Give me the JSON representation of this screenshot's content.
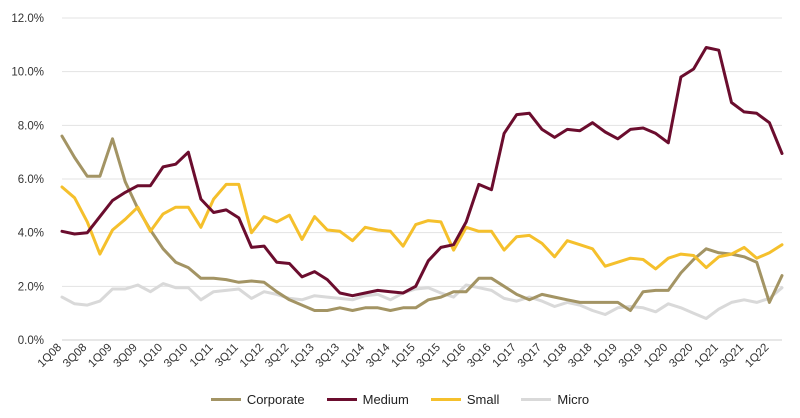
{
  "chart_data": {
    "type": "line",
    "x": [
      "1Q08",
      "2Q08",
      "3Q08",
      "4Q08",
      "1Q09",
      "2Q09",
      "3Q09",
      "4Q09",
      "1Q10",
      "2Q10",
      "3Q10",
      "4Q10",
      "1Q11",
      "2Q11",
      "3Q11",
      "4Q11",
      "1Q12",
      "2Q12",
      "3Q12",
      "4Q12",
      "1Q13",
      "2Q13",
      "3Q13",
      "4Q13",
      "1Q14",
      "2Q14",
      "3Q14",
      "4Q14",
      "1Q15",
      "2Q15",
      "3Q15",
      "4Q15",
      "1Q16",
      "2Q16",
      "3Q16",
      "4Q16",
      "1Q17",
      "2Q17",
      "3Q17",
      "4Q17",
      "1Q18",
      "2Q18",
      "3Q18",
      "4Q18",
      "1Q19",
      "2Q19",
      "3Q19",
      "4Q19",
      "1Q20",
      "2Q20",
      "3Q20",
      "4Q20",
      "1Q21",
      "2Q21",
      "3Q21",
      "4Q21",
      "1Q22",
      "2Q22"
    ],
    "x_tick_labels": [
      "1Q08",
      "3Q08",
      "1Q09",
      "3Q09",
      "1Q10",
      "3Q10",
      "1Q11",
      "3Q11",
      "1Q12",
      "3Q12",
      "1Q13",
      "3Q13",
      "1Q14",
      "3Q14",
      "1Q15",
      "3Q15",
      "1Q16",
      "3Q16",
      "1Q17",
      "3Q17",
      "1Q18",
      "3Q18",
      "1Q19",
      "3Q19",
      "1Q20",
      "3Q20",
      "1Q21",
      "3Q21",
      "1Q22"
    ],
    "y_tick_labels": [
      "0.0%",
      "2.0%",
      "4.0%",
      "6.0%",
      "8.0%",
      "10.0%",
      "12.0%"
    ],
    "ylim": [
      0,
      12
    ],
    "grid": true,
    "legend_position": "bottom",
    "series": [
      {
        "name": "Corporate",
        "color": "#a39464",
        "values": [
          7.6,
          6.8,
          6.1,
          6.1,
          7.5,
          5.9,
          4.9,
          4.1,
          3.4,
          2.9,
          2.7,
          2.3,
          2.3,
          2.25,
          2.15,
          2.2,
          2.15,
          1.8,
          1.5,
          1.3,
          1.1,
          1.1,
          1.2,
          1.1,
          1.2,
          1.2,
          1.1,
          1.2,
          1.2,
          1.5,
          1.6,
          1.8,
          1.8,
          2.3,
          2.3,
          2.0,
          1.7,
          1.5,
          1.7,
          1.6,
          1.5,
          1.4,
          1.4,
          1.4,
          1.4,
          1.1,
          1.8,
          1.85,
          1.85,
          2.5,
          3.0,
          3.4,
          3.25,
          3.2,
          3.1,
          2.9,
          1.4,
          2.4
        ]
      },
      {
        "name": "Medium",
        "color": "#6b0d2e",
        "values": [
          4.05,
          3.95,
          4.0,
          4.6,
          5.2,
          5.5,
          5.75,
          5.75,
          6.45,
          6.55,
          7.0,
          5.25,
          4.75,
          4.85,
          4.55,
          3.45,
          3.5,
          2.9,
          2.85,
          2.35,
          2.55,
          2.25,
          1.75,
          1.65,
          1.75,
          1.85,
          1.8,
          1.75,
          2.0,
          2.95,
          3.45,
          3.55,
          4.4,
          5.8,
          5.6,
          7.7,
          8.4,
          8.45,
          7.85,
          7.55,
          7.85,
          7.8,
          8.1,
          7.75,
          7.5,
          7.85,
          7.9,
          7.7,
          7.35,
          9.8,
          10.1,
          10.9,
          10.8,
          8.85,
          8.5,
          8.45,
          8.1,
          6.95
        ]
      },
      {
        "name": "Small",
        "color": "#f5c02c",
        "values": [
          5.7,
          5.3,
          4.4,
          3.2,
          4.1,
          4.5,
          4.95,
          4.05,
          4.7,
          4.95,
          4.95,
          4.2,
          5.25,
          5.8,
          5.8,
          4.0,
          4.6,
          4.4,
          4.65,
          3.75,
          4.6,
          4.1,
          4.05,
          3.7,
          4.2,
          4.1,
          4.05,
          3.5,
          4.3,
          4.45,
          4.4,
          3.35,
          4.2,
          4.05,
          4.05,
          3.35,
          3.85,
          3.9,
          3.6,
          3.1,
          3.7,
          3.55,
          3.4,
          2.75,
          2.9,
          3.05,
          3.0,
          2.65,
          3.05,
          3.2,
          3.15,
          2.7,
          3.1,
          3.2,
          3.45,
          3.05,
          3.25,
          3.55
        ]
      },
      {
        "name": "Micro",
        "color": "#d9d9d9",
        "values": [
          1.6,
          1.35,
          1.3,
          1.45,
          1.9,
          1.9,
          2.05,
          1.8,
          2.1,
          1.95,
          1.95,
          1.5,
          1.8,
          1.85,
          1.9,
          1.55,
          1.8,
          1.7,
          1.55,
          1.5,
          1.65,
          1.6,
          1.55,
          1.5,
          1.65,
          1.7,
          1.5,
          1.75,
          1.9,
          1.95,
          1.75,
          1.6,
          2.05,
          1.95,
          1.85,
          1.55,
          1.45,
          1.6,
          1.45,
          1.25,
          1.4,
          1.3,
          1.1,
          0.95,
          1.2,
          1.25,
          1.2,
          1.05,
          1.35,
          1.2,
          1.0,
          0.8,
          1.15,
          1.4,
          1.5,
          1.4,
          1.55,
          1.95
        ]
      }
    ]
  }
}
